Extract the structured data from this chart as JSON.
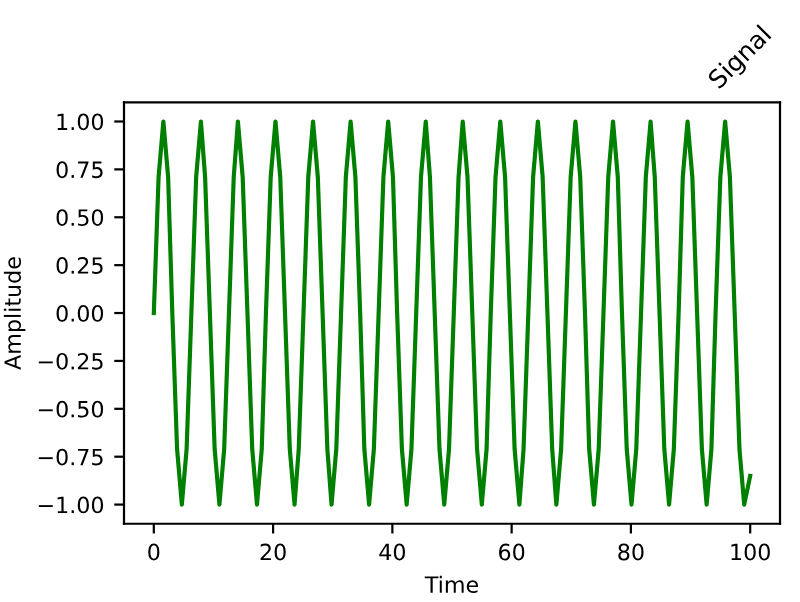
{
  "chart_data": {
    "type": "line",
    "title": "Signal",
    "xlabel": "Time",
    "ylabel": "Amplitude",
    "x": [
      0,
      0.8,
      1.6,
      2.4,
      3.1,
      3.9,
      4.7,
      5.5,
      6.3,
      7.1,
      7.9,
      8.6,
      9.4,
      10.2,
      11.0,
      11.8,
      12.6,
      13.4,
      14.1,
      14.9,
      15.7,
      16.5,
      17.3,
      18.1,
      18.8,
      19.6,
      20.4,
      21.2,
      22.0,
      22.8,
      23.6,
      24.3,
      25.1,
      25.9,
      26.7,
      27.5,
      28.3,
      29.1,
      29.8,
      30.6,
      31.4,
      32.2,
      33.0,
      33.8,
      34.6,
      35.3,
      36.1,
      36.9,
      37.7,
      38.5,
      39.3,
      40.1,
      40.8,
      41.6,
      42.4,
      43.2,
      44.0,
      44.8,
      45.6,
      46.3,
      47.1,
      47.9,
      48.7,
      49.5,
      50.3,
      51.1,
      51.8,
      52.6,
      53.4,
      54.2,
      55.0,
      55.8,
      56.5,
      57.3,
      58.1,
      58.9,
      59.7,
      60.5,
      61.3,
      62.0,
      62.8,
      63.6,
      64.4,
      65.2,
      66.0,
      66.8,
      67.5,
      68.3,
      69.1,
      69.9,
      70.7,
      71.5,
      72.3,
      73.0,
      73.8,
      74.6,
      75.4,
      76.2,
      77.0,
      77.8,
      78.5,
      79.3,
      80.1,
      80.9,
      81.7,
      82.5,
      83.3,
      84.0,
      84.8,
      85.6,
      86.4,
      87.2,
      88.0,
      88.7,
      89.5,
      90.3,
      91.1,
      91.9,
      92.7,
      93.5,
      94.2,
      95.0,
      95.8,
      96.6,
      97.4,
      98.2,
      99.0,
      100
    ],
    "series": [
      {
        "color": "#008000",
        "values": [
          0,
          0.71,
          1,
          0.71,
          0,
          -0.71,
          -1,
          -0.71,
          0,
          0.71,
          1,
          0.71,
          0,
          -0.71,
          -1,
          -0.71,
          0,
          0.71,
          1,
          0.71,
          0,
          -0.71,
          -1,
          -0.71,
          0,
          0.71,
          1,
          0.71,
          0,
          -0.71,
          -1,
          -0.71,
          0,
          0.71,
          1,
          0.71,
          0,
          -0.71,
          -1,
          -0.71,
          0,
          0.71,
          1,
          0.71,
          0,
          -0.71,
          -1,
          -0.71,
          0,
          0.71,
          1,
          0.71,
          0,
          -0.71,
          -1,
          -0.71,
          0,
          0.71,
          1,
          0.71,
          0,
          -0.71,
          -1,
          -0.71,
          0,
          0.71,
          1,
          0.71,
          0,
          -0.71,
          -1,
          -0.71,
          0,
          0.71,
          1,
          0.71,
          0,
          -0.71,
          -1,
          -0.71,
          0,
          0.71,
          1,
          0.71,
          0,
          -0.71,
          -1,
          -0.71,
          0,
          0.71,
          1,
          0.71,
          0,
          -0.71,
          -1,
          -0.71,
          0,
          0.71,
          1,
          0.71,
          0,
          -0.71,
          -1,
          -0.71,
          0,
          0.71,
          1,
          0.71,
          0,
          -0.71,
          -1,
          -0.71,
          0,
          0.71,
          1,
          0.71,
          0,
          -0.71,
          -1,
          -0.71,
          0,
          0.71,
          1,
          0.71,
          0,
          -0.71,
          -1,
          -0.85
        ]
      }
    ],
    "xlim": [
      -5,
      105
    ],
    "ylim": [
      -1.1,
      1.1
    ],
    "xticks": [
      0,
      20,
      40,
      60,
      80,
      100
    ],
    "yticks": [
      {
        "value": -1,
        "label": "−1.00"
      },
      {
        "value": -0.75,
        "label": "−0.75"
      },
      {
        "value": -0.5,
        "label": "−0.50"
      },
      {
        "value": -0.25,
        "label": "−0.25"
      },
      {
        "value": 0,
        "label": "0.00"
      },
      {
        "value": 0.25,
        "label": "0.25"
      },
      {
        "value": 0.5,
        "label": "0.50"
      },
      {
        "value": 0.75,
        "label": "0.75"
      },
      {
        "value": 1,
        "label": "1.00"
      }
    ],
    "grid": false,
    "legend": false
  }
}
